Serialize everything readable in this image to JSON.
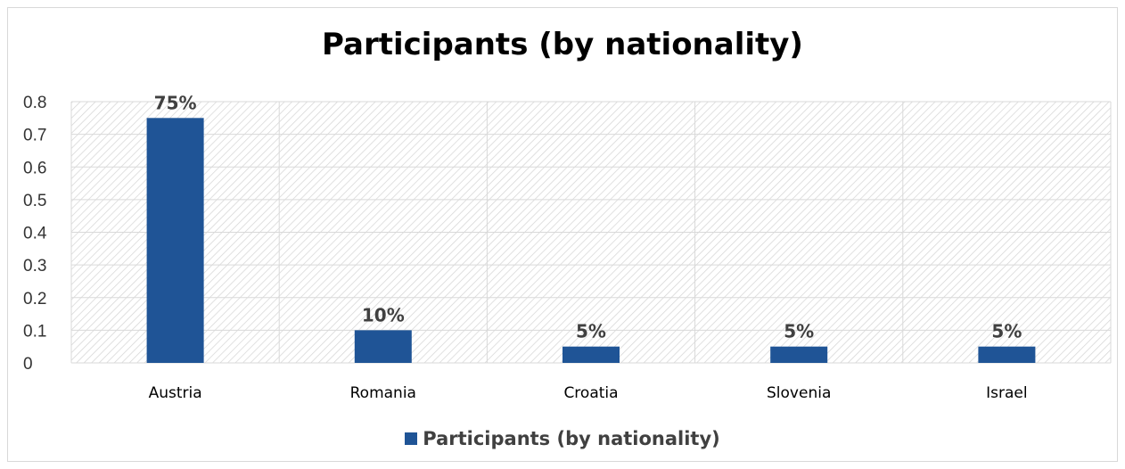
{
  "chart_data": {
    "type": "bar",
    "title": "Participants (by nationality)",
    "categories": [
      "Austria",
      "Romania",
      "Croatia",
      "Slovenia",
      "Israel"
    ],
    "series": [
      {
        "name": "Participants (by nationality)",
        "values": [
          0.75,
          0.1,
          0.05,
          0.05,
          0.05
        ],
        "data_labels": [
          "75%",
          "10%",
          "5%",
          "5%",
          "5%"
        ],
        "color": "#1f5496"
      }
    ],
    "ylim": [
      0,
      0.8
    ],
    "yticks": [
      "0",
      "0.1",
      "0.2",
      "0.3",
      "0.4",
      "0.5",
      "0.6",
      "0.7",
      "0.8"
    ],
    "grid": true,
    "legend": "bottom"
  }
}
